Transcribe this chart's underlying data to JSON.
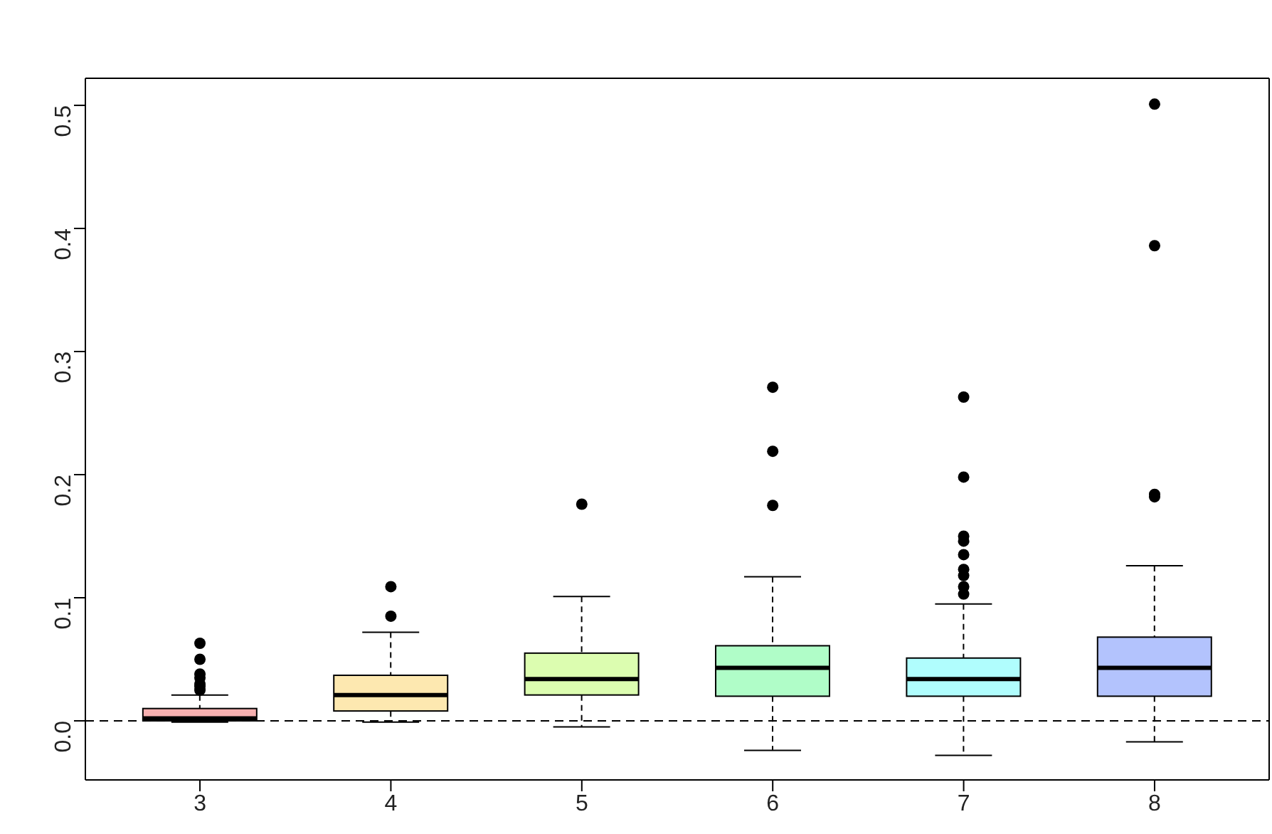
{
  "chart_data": {
    "type": "box",
    "categories": [
      "3",
      "4",
      "5",
      "6",
      "7",
      "8"
    ],
    "colors": [
      "#f7b0b0",
      "#fde8b0",
      "#dcfdb0",
      "#b0fdc8",
      "#b0fdfd",
      "#b3c3fd"
    ],
    "boxes": [
      {
        "low": -0.001,
        "q1": 0.0,
        "median": 0.002,
        "q3": 0.01,
        "high": 0.021,
        "outliers": [
          0.025,
          0.028,
          0.03,
          0.035,
          0.038,
          0.05,
          0.063
        ]
      },
      {
        "low": -0.001,
        "q1": 0.008,
        "median": 0.021,
        "q3": 0.037,
        "high": 0.072,
        "outliers": [
          0.085,
          0.109
        ]
      },
      {
        "low": -0.005,
        "q1": 0.021,
        "median": 0.034,
        "q3": 0.055,
        "high": 0.101,
        "outliers": [
          0.176
        ]
      },
      {
        "low": -0.024,
        "q1": 0.02,
        "median": 0.043,
        "q3": 0.061,
        "high": 0.117,
        "outliers": [
          0.175,
          0.219,
          0.271
        ]
      },
      {
        "low": -0.028,
        "q1": 0.02,
        "median": 0.034,
        "q3": 0.051,
        "high": 0.095,
        "outliers": [
          0.103,
          0.109,
          0.118,
          0.123,
          0.135,
          0.146,
          0.15,
          0.198,
          0.263
        ]
      },
      {
        "low": -0.017,
        "q1": 0.02,
        "median": 0.043,
        "q3": 0.068,
        "high": 0.126,
        "outliers": [
          0.182,
          0.184,
          0.386,
          0.501
        ]
      }
    ],
    "ylim": [
      -0.048,
      0.522
    ],
    "yticks": [
      {
        "value": 0,
        "label": "0.0"
      },
      0.1,
      0.2,
      0.3,
      0.4,
      0.5
    ],
    "ref_lines": [
      {
        "axis": "y",
        "value": 0,
        "line_style": "dashed",
        "color": "#000000"
      }
    ],
    "grid": false,
    "legend": false
  }
}
